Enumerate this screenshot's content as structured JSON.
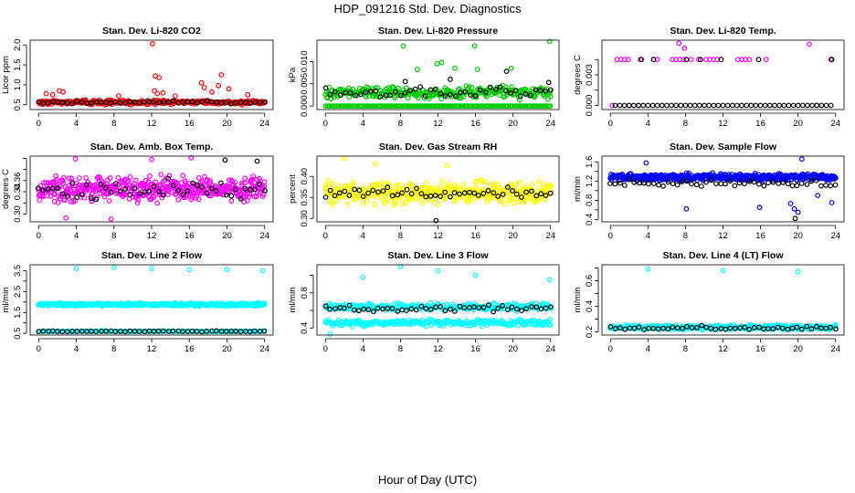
{
  "title": "HDP_091216  Std. Dev. Diagnostics",
  "xlabel": "Hour of Day (UTC)",
  "colors": {
    "frame": "#000000",
    "background": "#ffffff"
  },
  "chart_data": [
    {
      "type": "scatter",
      "title": "Stan. Dev. Li-820 CO2",
      "ylabel": "Licor ppm",
      "xlim": [
        -0.9,
        24.9
      ],
      "ylim": [
        0.38,
        2.12
      ],
      "xticks": [
        0,
        4,
        8,
        12,
        16,
        20,
        24
      ],
      "yticks": [
        0.5,
        1.0,
        1.5,
        2.0
      ],
      "ytick_labels": [
        "0.5",
        "1.0",
        "1.5",
        "2.0"
      ],
      "series": [
        {
          "name": "raw",
          "color": "#ff0000",
          "band": {
            "n": 340,
            "center": 0.56,
            "spread": 0.07
          },
          "points": [
            [
              0.8,
              0.78
            ],
            [
              1.5,
              0.75
            ],
            [
              2.2,
              0.85
            ],
            [
              2.6,
              0.82
            ],
            [
              12.1,
              2.03
            ],
            [
              12.4,
              1.22
            ],
            [
              12.8,
              1.18
            ],
            [
              12.3,
              0.85
            ],
            [
              12.6,
              0.78
            ],
            [
              13.2,
              0.8
            ],
            [
              14.5,
              0.72
            ],
            [
              17.3,
              1.05
            ],
            [
              17.6,
              0.93
            ],
            [
              18.4,
              0.82
            ],
            [
              19.1,
              0.98
            ],
            [
              19.4,
              1.25
            ],
            [
              20.2,
              0.9
            ],
            [
              22.2,
              0.75
            ],
            [
              8.5,
              0.72
            ]
          ]
        },
        {
          "name": "hourly",
          "color": "#000000",
          "band": {
            "n": 48,
            "center": 0.56,
            "spread": 0.05
          },
          "points": []
        }
      ]
    },
    {
      "type": "scatter",
      "title": "Stan. Dev. Li-820 Pressure",
      "ylabel": "kPa",
      "xlim": [
        -0.9,
        24.9
      ],
      "ylim": [
        -0.0008,
        0.0148
      ],
      "xticks": [
        0,
        4,
        8,
        12,
        16,
        20,
        24
      ],
      "yticks": [
        0.0,
        0.005,
        0.01
      ],
      "ytick_labels": [
        "0.000",
        "0.005",
        "0.010"
      ],
      "series": [
        {
          "name": "raw",
          "color": "#00cc00",
          "band": {
            "n": 300,
            "center": 0.003,
            "spread": 0.002
          },
          "points": [
            [
              8.3,
              0.0135
            ],
            [
              23.9,
              0.0145
            ],
            [
              11.9,
              0.0095
            ],
            [
              12.4,
              0.0098
            ],
            [
              13.8,
              0.0085
            ],
            [
              15.9,
              0.0135
            ],
            [
              16.2,
              0.0082
            ],
            [
              19.8,
              0.0085
            ],
            [
              9.8,
              0.0082
            ]
          ]
        },
        {
          "name": "floor",
          "color": "#00cc00",
          "band": {
            "n": 150,
            "center": 0.0,
            "spread": 0.0
          },
          "points": []
        },
        {
          "name": "hourly",
          "color": "#000000",
          "band": {
            "n": 46,
            "center": 0.003,
            "spread": 0.0018
          },
          "points": [
            [
              19.3,
              0.0078
            ],
            [
              8.5,
              0.0055
            ],
            [
              13.3,
              0.006
            ],
            [
              23.8,
              0.0053
            ]
          ]
        }
      ]
    },
    {
      "type": "scatter",
      "title": "Stan. Dev. Li-820 Temp.",
      "ylabel": "degrees C",
      "xlim": [
        -0.9,
        24.9
      ],
      "ylim": [
        -0.0004,
        0.0064
      ],
      "xticks": [
        0,
        4,
        8,
        12,
        16,
        20,
        24
      ],
      "yticks": [
        0.0,
        0.0015,
        0.003,
        0.0045
      ],
      "ytick_labels": [
        "0.000",
        "",
        "0.003",
        ""
      ],
      "series": [
        {
          "name": "raw",
          "color": "#ff00ff",
          "band": {
            "n": 0,
            "center": 0.0,
            "spread": 0.0
          },
          "points": [
            [
              0.7,
              0.0045
            ],
            [
              1.1,
              0.0045
            ],
            [
              1.5,
              0.0045
            ],
            [
              1.9,
              0.0045
            ],
            [
              3.2,
              0.0045
            ],
            [
              4.6,
              0.0045
            ],
            [
              5.0,
              0.0045
            ],
            [
              6.6,
              0.0045
            ],
            [
              7.0,
              0.0045
            ],
            [
              7.4,
              0.0045
            ],
            [
              7.8,
              0.0045
            ],
            [
              8.6,
              0.0045
            ],
            [
              9.4,
              0.0045
            ],
            [
              10.2,
              0.0045
            ],
            [
              10.6,
              0.0045
            ],
            [
              11.0,
              0.0045
            ],
            [
              11.4,
              0.0045
            ],
            [
              13.6,
              0.0045
            ],
            [
              14.0,
              0.0045
            ],
            [
              14.4,
              0.0045
            ],
            [
              14.8,
              0.0045
            ],
            [
              16.6,
              0.0045
            ],
            [
              23.5,
              0.0045
            ],
            [
              7.3,
              0.0061
            ],
            [
              7.9,
              0.0056
            ],
            [
              21.2,
              0.006
            ],
            [
              0.2,
              0.0
            ],
            [
              2.0,
              0.0
            ],
            [
              3.0,
              0.0
            ],
            [
              22.0,
              0.0
            ]
          ]
        },
        {
          "name": "hourly",
          "color": "#000000",
          "band": {
            "n": 0,
            "center": 0.0,
            "spread": 0.0
          },
          "points": [
            [
              3.3,
              0.0045
            ],
            [
              4.6,
              0.0045
            ],
            [
              8.1,
              0.0045
            ],
            [
              9.6,
              0.0045
            ],
            [
              11.8,
              0.0045
            ],
            [
              15.8,
              0.0045
            ],
            [
              23.6,
              0.0045
            ],
            [
              0.5,
              0.0
            ],
            [
              1.0,
              0.0
            ],
            [
              1.5,
              0.0
            ],
            [
              2.0,
              0.0
            ],
            [
              2.5,
              0.0
            ],
            [
              3.0,
              0.0
            ],
            [
              3.5,
              0.0
            ],
            [
              4.0,
              0.0
            ],
            [
              4.5,
              0.0
            ],
            [
              5.0,
              0.0
            ],
            [
              5.5,
              0.0
            ],
            [
              6.0,
              0.0
            ],
            [
              6.5,
              0.0
            ],
            [
              7.0,
              0.0
            ],
            [
              7.5,
              0.0
            ],
            [
              8.0,
              0.0
            ],
            [
              8.5,
              0.0
            ],
            [
              9.0,
              0.0
            ],
            [
              9.5,
              0.0
            ],
            [
              10.0,
              0.0
            ],
            [
              10.5,
              0.0
            ],
            [
              11.0,
              0.0
            ],
            [
              11.5,
              0.0
            ],
            [
              12.0,
              0.0
            ],
            [
              12.5,
              0.0
            ],
            [
              13.0,
              0.0
            ],
            [
              13.5,
              0.0
            ],
            [
              14.0,
              0.0
            ],
            [
              14.5,
              0.0
            ],
            [
              15.0,
              0.0
            ],
            [
              15.5,
              0.0
            ],
            [
              16.0,
              0.0
            ],
            [
              16.5,
              0.0
            ],
            [
              17.0,
              0.0
            ],
            [
              17.5,
              0.0
            ],
            [
              18.0,
              0.0
            ],
            [
              18.5,
              0.0
            ],
            [
              19.0,
              0.0
            ],
            [
              19.5,
              0.0
            ],
            [
              20.0,
              0.0
            ],
            [
              20.5,
              0.0
            ],
            [
              21.0,
              0.0
            ],
            [
              21.5,
              0.0
            ],
            [
              22.0,
              0.0
            ],
            [
              22.5,
              0.0
            ],
            [
              23.0,
              0.0
            ],
            [
              23.5,
              0.0
            ]
          ]
        }
      ]
    },
    {
      "type": "scatter",
      "title": "Stan. Dev. Amb. Box Temp.",
      "ylabel": "degrees C",
      "xlim": [
        -0.9,
        24.9
      ],
      "ylim": [
        0.286,
        0.404
      ],
      "xticks": [
        0,
        4,
        8,
        12,
        16,
        20,
        24
      ],
      "yticks": [
        0.3,
        0.32,
        0.34,
        0.36,
        0.38,
        0.4
      ],
      "ytick_labels": [
        "0.30",
        "",
        "0.34",
        "0.36",
        "",
        ""
      ],
      "series": [
        {
          "name": "raw",
          "color": "#ff00ff",
          "band": {
            "n": 480,
            "center": 0.345,
            "spread": 0.03
          },
          "points": [
            [
              16.2,
              0.401
            ],
            [
              3.9,
              0.399
            ],
            [
              12.0,
              0.398
            ],
            [
              2.9,
              0.293
            ],
            [
              7.7,
              0.291
            ]
          ]
        },
        {
          "name": "hourly",
          "color": "#000000",
          "band": {
            "n": 48,
            "center": 0.345,
            "spread": 0.026
          },
          "points": [
            [
              19.8,
              0.397
            ],
            [
              23.2,
              0.395
            ]
          ]
        }
      ]
    },
    {
      "type": "scatter",
      "title": "Stan. Dev. Gas Stream RH",
      "ylabel": "percent",
      "xlim": [
        -0.9,
        24.9
      ],
      "ylim": [
        0.292,
        0.448
      ],
      "xticks": [
        0,
        4,
        8,
        12,
        16,
        20,
        24
      ],
      "yticks": [
        0.3,
        0.35,
        0.4
      ],
      "ytick_labels": [
        "0.30",
        "0.35",
        "0.40"
      ],
      "series": [
        {
          "name": "raw",
          "color": "#ffff00",
          "band": {
            "n": 460,
            "center": 0.36,
            "spread": 0.035
          },
          "points": [
            [
              2.0,
              0.443
            ],
            [
              5.3,
              0.43
            ],
            [
              13.0,
              0.425
            ]
          ]
        },
        {
          "name": "hourly",
          "color": "#000000",
          "band": {
            "n": 48,
            "center": 0.36,
            "spread": 0.022
          },
          "points": [
            [
              11.8,
              0.295
            ]
          ]
        }
      ]
    },
    {
      "type": "scatter",
      "title": "Stan. Dev. Sample Flow",
      "ylabel": "ml/min",
      "xlim": [
        -0.9,
        24.9
      ],
      "ylim": [
        0.35,
        1.72
      ],
      "xticks": [
        0,
        4,
        8,
        12,
        16,
        20,
        24
      ],
      "yticks": [
        0.4,
        0.6,
        0.8,
        1.0,
        1.2,
        1.4,
        1.6
      ],
      "ytick_labels": [
        "0.4",
        "",
        "0.8",
        "",
        "1.2",
        "",
        "1.6"
      ],
      "series": [
        {
          "name": "raw",
          "color": "#0000ff",
          "band": {
            "n": 520,
            "center": 1.28,
            "spread": 0.1
          },
          "points": [
            [
              3.8,
              1.58
            ],
            [
              20.4,
              1.66
            ],
            [
              8.1,
              0.62
            ],
            [
              15.9,
              0.65
            ],
            [
              19.2,
              0.73
            ],
            [
              19.6,
              0.62
            ],
            [
              20.0,
              0.55
            ],
            [
              23.6,
              0.75
            ],
            [
              22.1,
              0.9
            ]
          ]
        },
        {
          "name": "hourly",
          "color": "#000000",
          "band": {
            "n": 48,
            "center": 1.15,
            "spread": 0.1
          },
          "points": [
            [
              19.7,
              0.42
            ]
          ]
        }
      ]
    },
    {
      "type": "scatter",
      "title": "Stan. Dev. Line 2 Flow",
      "ylabel": "ml/min",
      "xlim": [
        -0.9,
        24.9
      ],
      "ylim": [
        0.42,
        3.78
      ],
      "xticks": [
        0,
        4,
        8,
        12,
        16,
        20,
        24
      ],
      "yticks": [
        0.5,
        1.0,
        1.5,
        2.0,
        2.5,
        3.0,
        3.5
      ],
      "ytick_labels": [
        "0.5",
        "",
        "1.5",
        "",
        "2.5",
        "",
        "3.5"
      ],
      "series": [
        {
          "name": "raw",
          "color": "#00ffff",
          "band": {
            "n": 420,
            "center": 1.88,
            "spread": 0.1
          },
          "points": [
            [
              4.0,
              3.6
            ],
            [
              8.0,
              3.65
            ],
            [
              12.0,
              3.6
            ],
            [
              16.0,
              3.55
            ],
            [
              20.0,
              3.55
            ],
            [
              23.8,
              3.5
            ]
          ]
        },
        {
          "name": "low",
          "color": "#00ffff",
          "band": {
            "n": 150,
            "center": 0.6,
            "spread": 0.03
          },
          "points": []
        },
        {
          "name": "hourly",
          "color": "#000000",
          "band": {
            "n": 48,
            "center": 0.6,
            "spread": 0.03
          },
          "points": []
        }
      ]
    },
    {
      "type": "scatter",
      "title": "Stan. Dev. Line 3 Flow",
      "ylabel": "ml/min",
      "xlim": [
        -0.9,
        24.9
      ],
      "ylim": [
        0.32,
        1.12
      ],
      "xticks": [
        0,
        4,
        8,
        12,
        16,
        20,
        24
      ],
      "yticks": [
        0.4,
        0.6,
        0.8,
        1.0
      ],
      "ytick_labels": [
        "0.4",
        "",
        "0.8",
        ""
      ],
      "series": [
        {
          "name": "upper",
          "color": "#00ffff",
          "band": {
            "n": 280,
            "center": 0.64,
            "spread": 0.06
          },
          "points": [
            [
              4.0,
              0.98
            ],
            [
              8.0,
              1.1
            ],
            [
              12.0,
              1.05
            ],
            [
              16.0,
              1.0
            ],
            [
              23.9,
              0.95
            ],
            [
              0.5,
              0.32
            ]
          ]
        },
        {
          "name": "lower",
          "color": "#00ffff",
          "band": {
            "n": 260,
            "center": 0.46,
            "spread": 0.05
          },
          "points": []
        },
        {
          "name": "hourly",
          "color": "#000000",
          "band": {
            "n": 48,
            "center": 0.62,
            "spread": 0.05
          },
          "points": []
        }
      ]
    },
    {
      "type": "scatter",
      "title": "Stan. Dev. Line 4 (LT) Flow",
      "ylabel": "ml/min",
      "xlim": [
        -0.9,
        24.9
      ],
      "ylim": [
        0.175,
        0.725
      ],
      "xticks": [
        0,
        4,
        8,
        12,
        16,
        20,
        24
      ],
      "yticks": [
        0.2,
        0.3,
        0.4,
        0.5,
        0.6,
        0.7
      ],
      "ytick_labels": [
        "0.2",
        "",
        "0.4",
        "",
        "0.6",
        ""
      ],
      "series": [
        {
          "name": "raw",
          "color": "#00ffff",
          "band": {
            "n": 380,
            "center": 0.235,
            "spread": 0.025
          },
          "points": [
            [
              4.0,
              0.69
            ],
            [
              12.0,
              0.68
            ],
            [
              20.0,
              0.67
            ]
          ]
        },
        {
          "name": "hourly",
          "color": "#000000",
          "band": {
            "n": 48,
            "center": 0.23,
            "spread": 0.022
          },
          "points": []
        }
      ]
    }
  ]
}
